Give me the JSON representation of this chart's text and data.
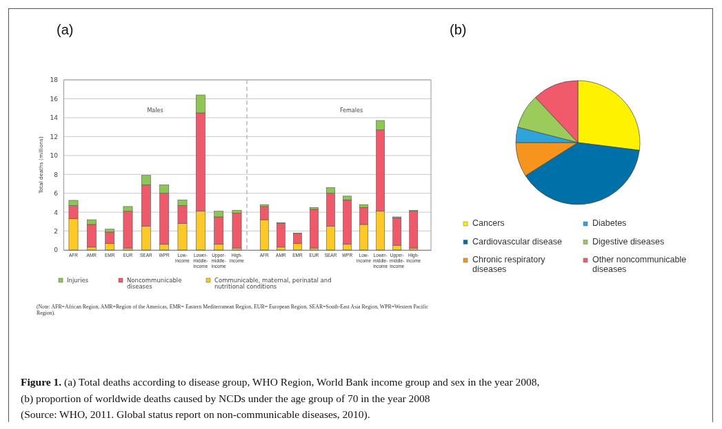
{
  "chart_data": [
    {
      "type": "bar",
      "title": "Males",
      "ylabel": "Total deaths (millions)",
      "stacked": true,
      "grid": "y",
      "legend": "bottom",
      "categories": [
        "AFR",
        "AMR",
        "EMR",
        "EUR",
        "SEAR",
        "WPR",
        "Low-income",
        "Lower-middle-income",
        "Upper-middle-income",
        "High-income"
      ],
      "ylim": [
        0,
        18
      ],
      "yticks": [
        0,
        2,
        4,
        6,
        8,
        10,
        12,
        14,
        16,
        18
      ],
      "series": [
        {
          "name": "Communicable, maternal, perinatal and nutritional conditions",
          "color": "#fcc928",
          "values": [
            3.3,
            0.3,
            0.7,
            0.2,
            2.5,
            0.6,
            2.8,
            4.1,
            0.6,
            0.2
          ]
        },
        {
          "name": "Noncommunicable diseases",
          "color": "#ef5a6a",
          "values": [
            1.4,
            2.4,
            1.2,
            3.9,
            4.4,
            5.4,
            1.9,
            10.4,
            2.9,
            3.7
          ]
        },
        {
          "name": "Injuries",
          "color": "#8dc653",
          "values": [
            0.55,
            0.5,
            0.3,
            0.5,
            1.0,
            0.9,
            0.6,
            1.9,
            0.6,
            0.3
          ]
        }
      ],
      "annotations": [
        "(a)",
        "(Note: AFR=African Region, AMR=Region of the Americas, EMR= Eastern Mediterranean Region, EUR= European Region, SEAR=South-East Asia Region, WPR=Western Pacific Region).",
        "Figure 1. (a) Total deaths according to disease group, WHO Region, World Bank income group and sex in the year 2008,",
        "(b) proportion of worldwide deaths caused by NCDs under the age group of 70 in the year 2008",
        "(Source: WHO, 2011. Global status report on non-communicable diseases, 2010)."
      ]
    },
    {
      "type": "bar",
      "title": "Females",
      "stacked": true,
      "grid": "y",
      "tick_labels": "x",
      "categories": [
        "AFR",
        "AMR",
        "EMR",
        "EUR",
        "SEAR",
        "WPR",
        "Low-income",
        "Lower-middle-income",
        "Upper-middle-income",
        "High-income"
      ],
      "ylim": [
        0,
        18
      ],
      "yticks": [
        0,
        2,
        4,
        6,
        8,
        10,
        12,
        14,
        16,
        18
      ],
      "series": [
        {
          "color": "#fcc928",
          "values": [
            3.2,
            0.3,
            0.7,
            0.2,
            2.5,
            0.6,
            2.7,
            4.1,
            0.5,
            0.2
          ]
        },
        {
          "color": "#ef5a6a",
          "values": [
            1.4,
            2.5,
            1.0,
            4.1,
            3.5,
            4.7,
            1.8,
            8.6,
            2.9,
            3.9
          ]
        },
        {
          "color": "#8dc653",
          "values": [
            0.2,
            0.1,
            0.1,
            0.2,
            0.6,
            0.4,
            0.3,
            1.0,
            0.1,
            0.1
          ]
        }
      ]
    },
    {
      "type": "pie",
      "legend": "bottom",
      "categories": [
        "Cancers",
        "Cardiovascular disease",
        "Chronic respiratory diseases",
        "Diabetes",
        "Digestive diseases",
        "Other noncommunicable diseases"
      ],
      "values": [
        27,
        39,
        9,
        4,
        9,
        12
      ],
      "colors": [
        "#fff200",
        "#0070a8",
        "#f7941d",
        "#2ea3dc",
        "#9acb5b",
        "#f05a6a"
      ],
      "annotations": [
        "(b)"
      ]
    }
  ]
}
